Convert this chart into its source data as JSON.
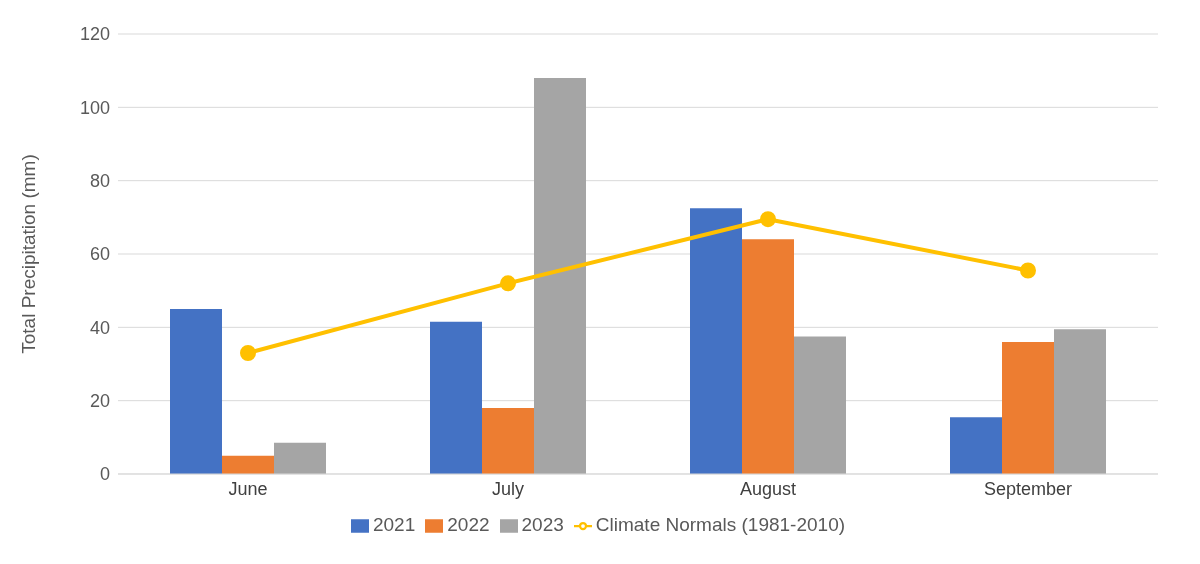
{
  "chart_data": {
    "type": "bar",
    "ylabel": "Total Precipitation (mm)",
    "categories": [
      "June",
      "July",
      "August",
      "September"
    ],
    "series": [
      {
        "name": "2021",
        "color": "#4472c4",
        "values": [
          45,
          41.5,
          72.5,
          15.5
        ]
      },
      {
        "name": "2022",
        "color": "#ed7d31",
        "values": [
          5,
          18,
          64,
          36
        ]
      },
      {
        "name": "2023",
        "color": "#a5a5a5",
        "values": [
          8.5,
          108,
          37.5,
          39.5
        ]
      },
      {
        "name": "Climate Normals (1981-2010)",
        "type": "line",
        "color": "#ffc000",
        "values": [
          33,
          52,
          69.5,
          55.5
        ]
      }
    ],
    "ylim": [
      0,
      120
    ],
    "yticks": [
      0,
      20,
      40,
      60,
      80,
      100,
      120
    ],
    "grid": "y",
    "legend": "bottom",
    "marker": "circle"
  }
}
